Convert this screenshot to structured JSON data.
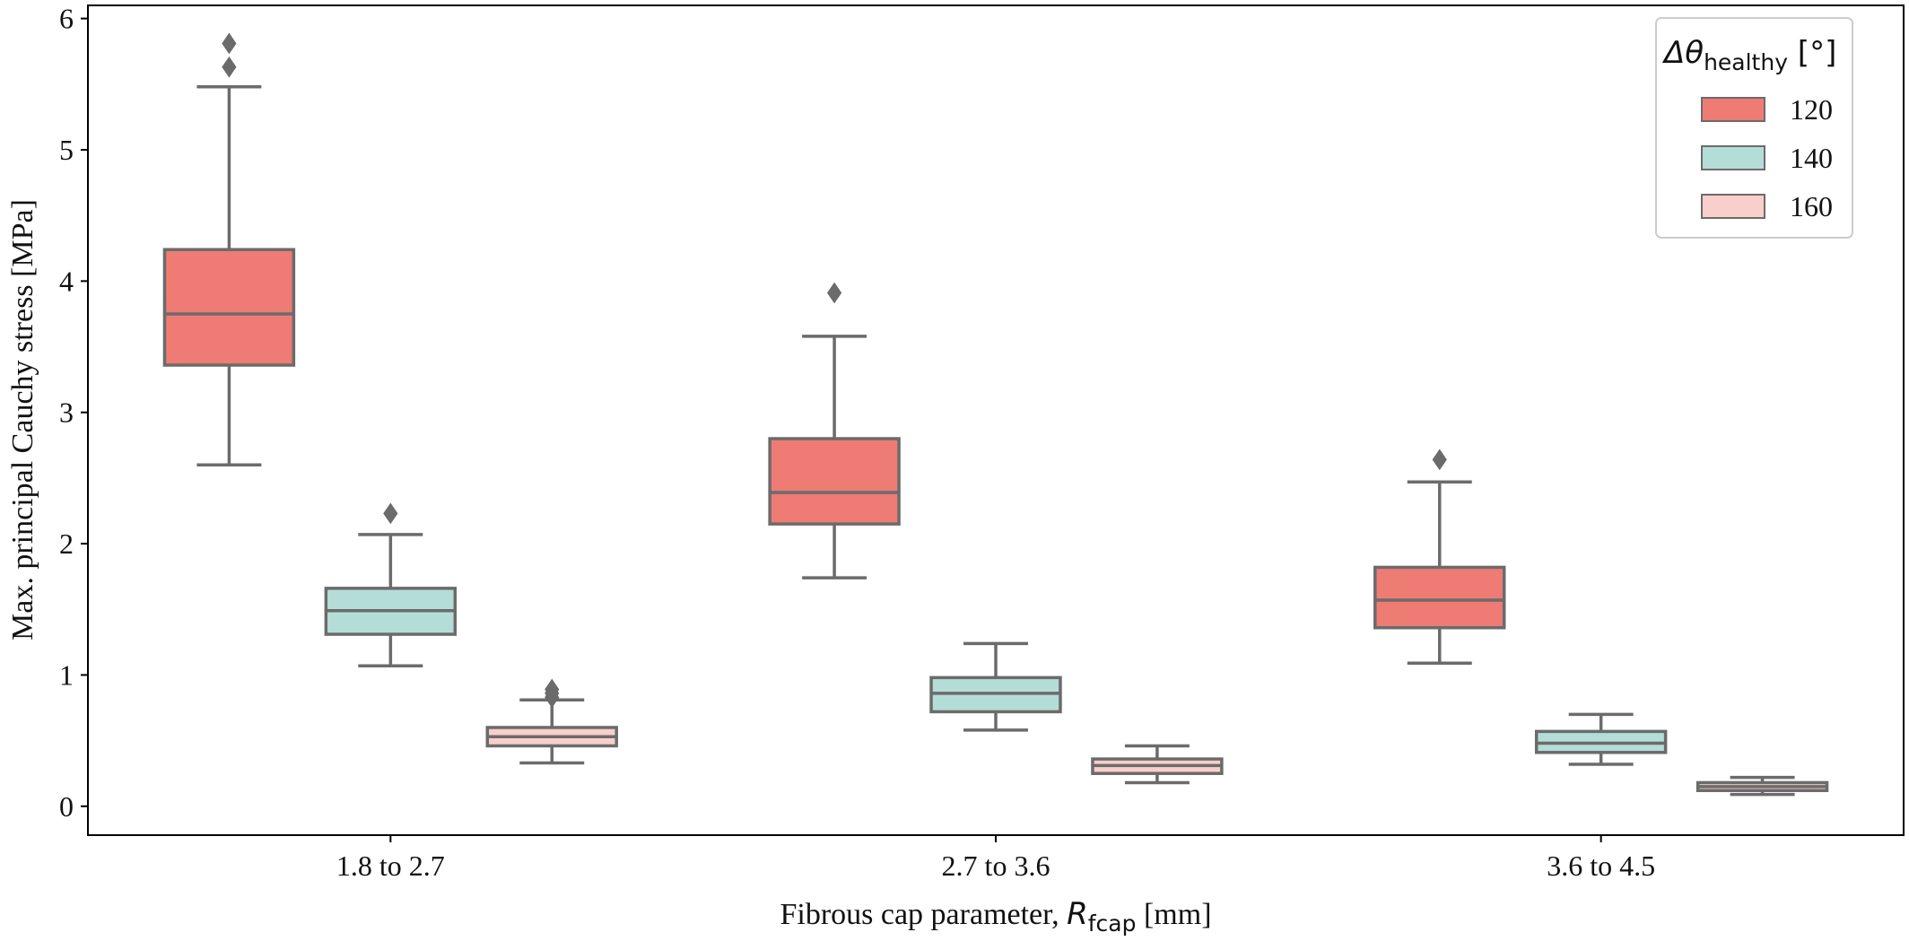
{
  "chart_data": {
    "type": "box",
    "title": "",
    "xlabel": {
      "prefix": "Fibrous cap parameter, ",
      "symbol": "R",
      "sub": "fcap",
      "suffix": " [mm]"
    },
    "ylabel": "Max. principal Cauchy stress [MPa]",
    "ylim": [
      -0.22,
      6.1
    ],
    "yticks": [
      "0",
      "1",
      "2",
      "3",
      "4",
      "5",
      "6"
    ],
    "categories": [
      "1.8 to 2.7",
      "2.7 to 3.6",
      "3.6 to 4.5"
    ],
    "grid": false,
    "legend": {
      "position": "top-right",
      "title": {
        "symbol": "Δθ",
        "sub": "healthy",
        "suffix": " [°]"
      }
    },
    "series": [
      {
        "name": "120",
        "color": "#EE7B74",
        "boxes": [
          {
            "whislo": 2.6,
            "q1": 3.36,
            "med": 3.75,
            "q3": 4.24,
            "whishi": 5.48,
            "fliers": [
              5.63,
              5.81
            ]
          },
          {
            "whislo": 1.74,
            "q1": 2.15,
            "med": 2.39,
            "q3": 2.8,
            "whishi": 3.58,
            "fliers": [
              3.91
            ]
          },
          {
            "whislo": 1.09,
            "q1": 1.36,
            "med": 1.57,
            "q3": 1.82,
            "whishi": 2.47,
            "fliers": [
              2.64
            ]
          }
        ]
      },
      {
        "name": "140",
        "color": "#B5DDD8",
        "boxes": [
          {
            "whislo": 1.07,
            "q1": 1.31,
            "med": 1.49,
            "q3": 1.66,
            "whishi": 2.07,
            "fliers": [
              2.23
            ]
          },
          {
            "whislo": 0.58,
            "q1": 0.72,
            "med": 0.86,
            "q3": 0.98,
            "whishi": 1.24,
            "fliers": []
          },
          {
            "whislo": 0.32,
            "q1": 0.41,
            "med": 0.48,
            "q3": 0.57,
            "whishi": 0.7,
            "fliers": []
          }
        ]
      },
      {
        "name": "160",
        "color": "#F8CFCB",
        "boxes": [
          {
            "whislo": 0.33,
            "q1": 0.46,
            "med": 0.53,
            "q3": 0.6,
            "whishi": 0.81,
            "fliers": [
              0.83,
              0.86,
              0.89
            ]
          },
          {
            "whislo": 0.18,
            "q1": 0.25,
            "med": 0.31,
            "q3": 0.36,
            "whishi": 0.46,
            "fliers": []
          },
          {
            "whislo": 0.09,
            "q1": 0.12,
            "med": 0.15,
            "q3": 0.18,
            "whishi": 0.22,
            "fliers": []
          }
        ]
      }
    ]
  }
}
